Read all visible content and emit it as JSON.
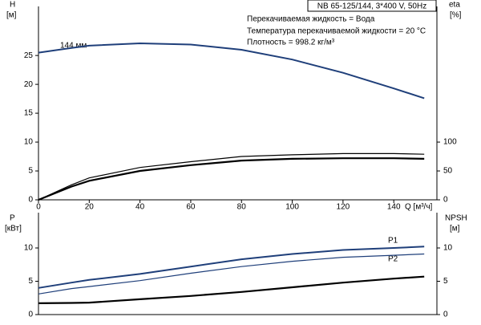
{
  "chart_data": [
    {
      "type": "line",
      "title": "NB 65-125/144, 3*400 V, 50Hz",
      "annotations": [
        "Перекачиваемая жидкость = Вода",
        "Температура перекачиваемой жидкости = 20 °C",
        "Плотность = 998.2 кг/м³",
        "144 мм"
      ],
      "ylabel": "H",
      "yunit": "[м]",
      "y2label": "eta",
      "y2unit": "[%]",
      "xlabel": "Q [м³/ч]",
      "x": [
        0,
        13,
        20,
        40,
        60,
        80,
        100,
        120,
        140,
        152
      ],
      "xlim": [
        0,
        157
      ],
      "xticks": [
        0,
        20,
        40,
        60,
        80,
        100,
        120,
        140
      ],
      "ylim": [
        0,
        33.5
      ],
      "yticks": [
        0,
        5,
        10,
        15,
        20,
        25
      ],
      "y2lim": [
        0,
        335
      ],
      "y2ticks": [
        0,
        50,
        100
      ],
      "series": [
        {
          "color": "#1f3f7a",
          "values": [
            25.5,
            26.3,
            26.7,
            27.1,
            26.9,
            26.0,
            24.3,
            22.0,
            19.3,
            17.6
          ]
        },
        {
          "color": "#000000",
          "axis": "y2",
          "values": [
            0,
            26,
            38,
            56,
            66,
            75,
            78,
            80,
            80,
            79
          ]
        },
        {
          "color": "#000000",
          "axis": "y2",
          "values": [
            0,
            23,
            33,
            50,
            60,
            68,
            71,
            72,
            72,
            71
          ]
        }
      ]
    },
    {
      "type": "line",
      "ylabel": "P",
      "yunit": "[кВт]",
      "y2label": "NPSH",
      "y2unit": "[м]",
      "x": [
        0,
        13,
        20,
        40,
        60,
        80,
        100,
        120,
        140,
        152
      ],
      "xlim": [
        0,
        157
      ],
      "ylim": [
        0,
        15.3
      ],
      "yticks": [
        0,
        5,
        10
      ],
      "y2lim": [
        0,
        15.3
      ],
      "y2ticks": [
        0,
        5,
        10
      ],
      "series": [
        {
          "name": "P1",
          "color": "#1f3f7a",
          "values": [
            4.0,
            4.8,
            5.2,
            6.1,
            7.2,
            8.3,
            9.1,
            9.7,
            10.0,
            10.2
          ]
        },
        {
          "name": "P2",
          "color": "#1f3f7a",
          "values": [
            3.1,
            3.9,
            4.2,
            5.1,
            6.2,
            7.2,
            8.0,
            8.6,
            8.9,
            9.1
          ]
        },
        {
          "color": "#000000",
          "axis": "y2",
          "values": [
            1.7,
            1.75,
            1.8,
            2.3,
            2.8,
            3.4,
            4.1,
            4.8,
            5.4,
            5.7
          ]
        }
      ]
    }
  ]
}
